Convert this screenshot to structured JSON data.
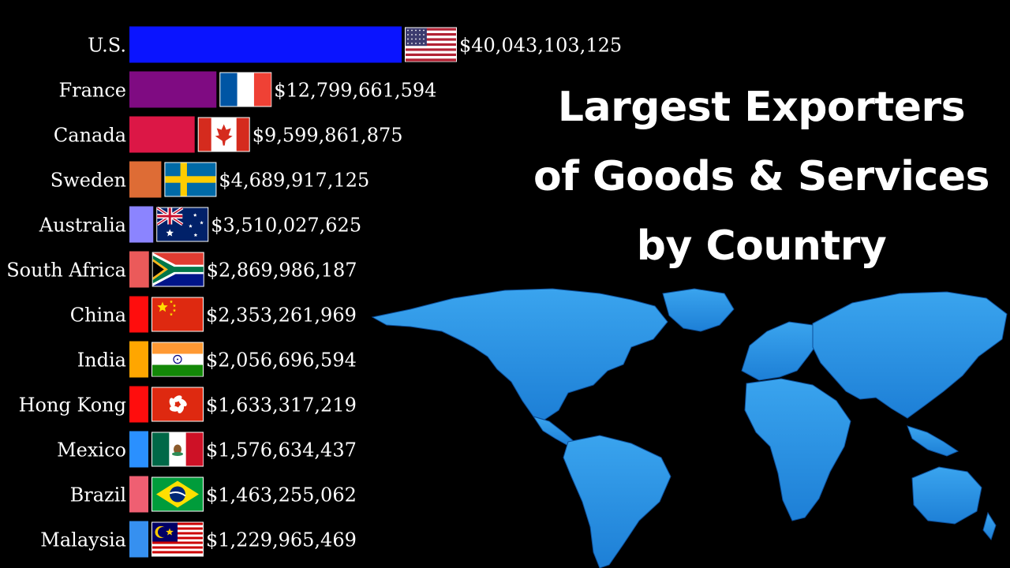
{
  "title_lines": [
    "Largest Exporters",
    "of Goods & Services",
    "by Country"
  ],
  "colors": {
    "background": "#000000",
    "map": "#2b93e0",
    "map_dark": "#1565b8",
    "text": "#ffffff"
  },
  "chart_data": {
    "type": "bar",
    "orientation": "horizontal",
    "title": "Largest Exporters of Goods & Services by Country",
    "categories": [
      "U.S.",
      "France",
      "Canada",
      "Sweden",
      "Australia",
      "South Africa",
      "China",
      "India",
      "Hong Kong",
      "Mexico",
      "Brazil",
      "Malaysia"
    ],
    "values": [
      40043103125,
      12799661594,
      9599861875,
      4689917125,
      3510027625,
      2869986187,
      2353261969,
      2056696594,
      1633317219,
      1576634437,
      1463255062,
      1229965469
    ],
    "value_labels": [
      "$40,043,103,125",
      "$12,799,661,594",
      "$9,599,861,875",
      "$4,689,917,125",
      "$3,510,027,625",
      "$2,869,986,187",
      "$2,353,261,969",
      "$2,056,696,594",
      "$1,633,317,219",
      "$1,576,634,437",
      "$1,463,255,062",
      "$1,229,965,469"
    ],
    "bar_colors": [
      "#0a14ff",
      "#7f0b82",
      "#dc1746",
      "#de6c35",
      "#8b84ff",
      "#eb5a5a",
      "#ff0d0d",
      "#ffa600",
      "#ff0d0d",
      "#2a90ff",
      "#ef5f72",
      "#3690f0"
    ],
    "flags": [
      "us-flag-icon",
      "france-flag-icon",
      "canada-flag-icon",
      "sweden-flag-icon",
      "australia-flag-icon",
      "south-africa-flag-icon",
      "china-flag-icon",
      "india-flag-icon",
      "hong-kong-flag-icon",
      "mexico-flag-icon",
      "brazil-flag-icon",
      "malaysia-flag-icon"
    ],
    "xlabel": "",
    "ylabel": "",
    "legend": "none",
    "grid": false
  }
}
